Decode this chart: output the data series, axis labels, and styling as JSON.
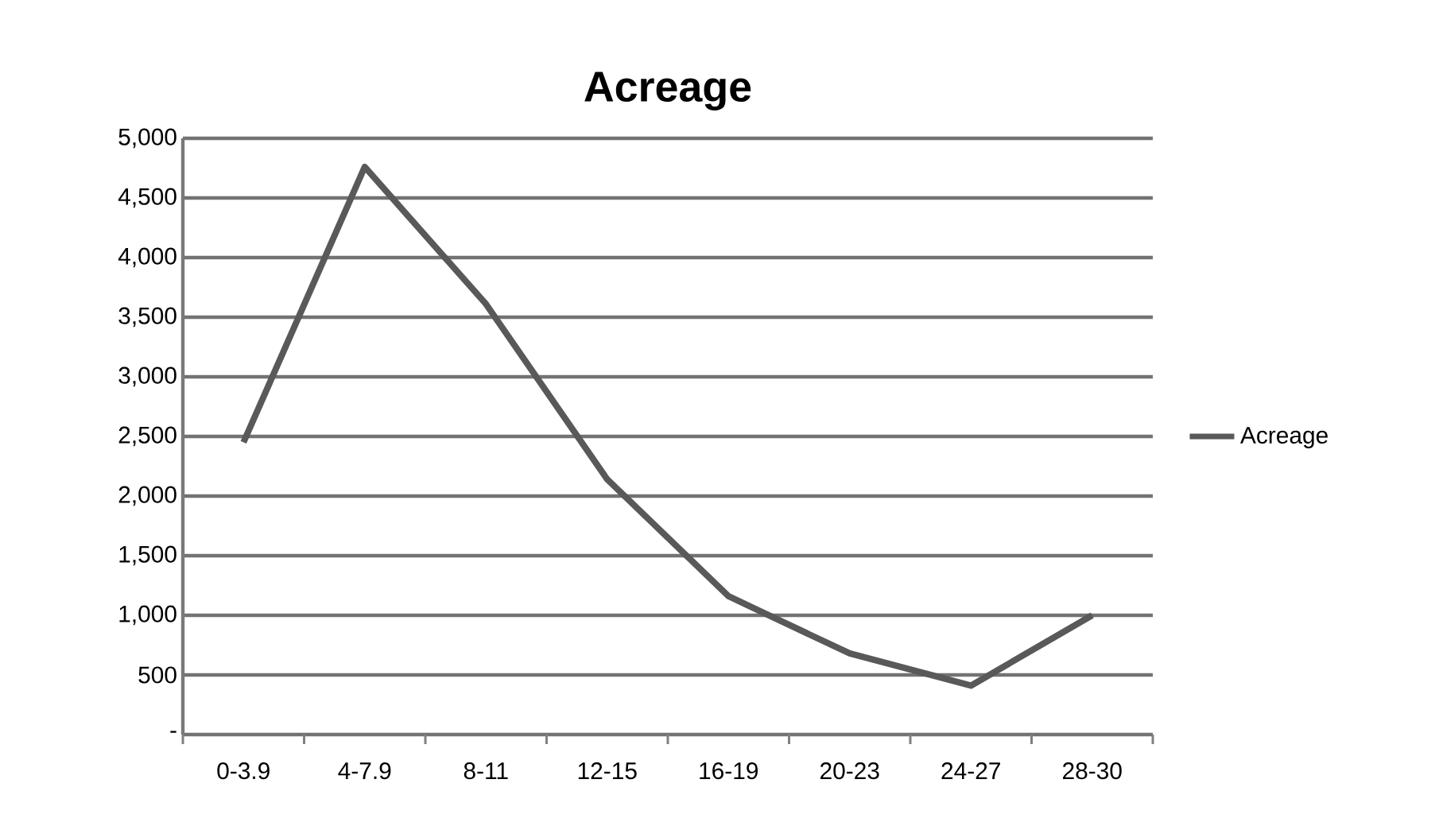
{
  "chart_data": {
    "type": "line",
    "title": "Acreage",
    "categories": [
      "0-3.9",
      "4-7.9",
      "8-11",
      "12-15",
      "16-19",
      "20-23",
      "24-27",
      "28-30"
    ],
    "series": [
      {
        "name": "Acreage",
        "color": "#595959",
        "values": [
          2450,
          4760,
          3610,
          2140,
          1160,
          680,
          410,
          1000
        ]
      }
    ],
    "ylim": [
      0,
      5000
    ],
    "yticks": [
      {
        "value": 0,
        "label": "-"
      },
      500,
      {
        "value": 1000,
        "label": "1,000"
      },
      {
        "value": 1500,
        "label": "1,500"
      },
      {
        "value": 2000,
        "label": "2,000"
      },
      {
        "value": 2500,
        "label": "2,500"
      },
      {
        "value": 3000,
        "label": "3,000"
      },
      {
        "value": 3500,
        "label": "3,500"
      },
      {
        "value": 4000,
        "label": "4,000"
      },
      {
        "value": 4500,
        "label": "4,500"
      },
      {
        "value": 5000,
        "label": "5,000"
      }
    ],
    "grid": "y",
    "legend": "right",
    "marker": "none",
    "line_style": "solid"
  }
}
